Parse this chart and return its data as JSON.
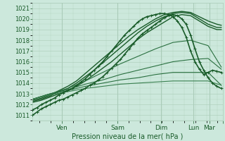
{
  "xlabel": "Pression niveau de la mer( hPa )",
  "ylim": [
    1010.5,
    1021.5
  ],
  "xlim": [
    0,
    130
  ],
  "yticks": [
    1011,
    1012,
    1013,
    1014,
    1015,
    1016,
    1017,
    1018,
    1019,
    1020,
    1021
  ],
  "xtick_positions": [
    20,
    58,
    88,
    110,
    121,
    130
  ],
  "xtick_labels": [
    "Ven",
    "Sam",
    "Dim",
    "Lun",
    "Mar",
    ""
  ],
  "bg_color": "#cce8dc",
  "grid_color": "#aaccb8",
  "series": [
    {
      "x": [
        0,
        3,
        6,
        9,
        12,
        15,
        18,
        21,
        24,
        27,
        30,
        33,
        36,
        39,
        42,
        45,
        48,
        51,
        54,
        57,
        60,
        63,
        66,
        69,
        72,
        75,
        78,
        81,
        84,
        87,
        90,
        93,
        96,
        99,
        102,
        105,
        108,
        111,
        114,
        117,
        120,
        123,
        126,
        129
      ],
      "y": [
        1011.0,
        1011.3,
        1011.6,
        1011.8,
        1012.0,
        1012.2,
        1012.4,
        1012.5,
        1012.7,
        1012.9,
        1013.1,
        1013.3,
        1013.5,
        1013.8,
        1014.0,
        1014.3,
        1014.6,
        1015.0,
        1015.4,
        1015.8,
        1016.2,
        1016.7,
        1017.2,
        1017.7,
        1018.2,
        1018.6,
        1018.9,
        1019.2,
        1019.5,
        1019.8,
        1020.1,
        1020.3,
        1020.4,
        1020.3,
        1020.0,
        1019.5,
        1018.5,
        1017.2,
        1016.0,
        1015.2,
        1014.5,
        1014.0,
        1013.7,
        1013.5
      ],
      "style": "marker",
      "linewidth": 1.2,
      "color": "#1a5c2a",
      "marker": "+"
    },
    {
      "x": [
        0,
        3,
        6,
        9,
        12,
        15,
        18,
        21,
        24,
        27,
        30,
        33,
        36,
        39,
        42,
        45,
        48,
        51,
        54,
        57,
        60,
        63,
        66,
        69,
        72,
        75,
        78,
        81,
        84,
        87,
        90,
        93,
        96,
        99,
        102,
        105,
        108,
        111,
        114,
        117,
        120,
        123,
        126,
        129
      ],
      "y": [
        1011.5,
        1011.7,
        1012.0,
        1012.2,
        1012.4,
        1012.6,
        1012.9,
        1013.1,
        1013.3,
        1013.5,
        1013.8,
        1014.1,
        1014.4,
        1014.8,
        1015.2,
        1015.6,
        1016.0,
        1016.5,
        1017.0,
        1017.5,
        1018.0,
        1018.5,
        1018.9,
        1019.3,
        1019.7,
        1020.0,
        1020.2,
        1020.3,
        1020.4,
        1020.5,
        1020.5,
        1020.4,
        1020.2,
        1019.8,
        1019.2,
        1018.3,
        1017.0,
        1016.0,
        1015.3,
        1014.8,
        1015.0,
        1015.2,
        1015.1,
        1015.0
      ],
      "style": "marker",
      "linewidth": 1.2,
      "color": "#1a5c2a",
      "marker": "+"
    },
    {
      "x": [
        0,
        6,
        12,
        18,
        24,
        30,
        36,
        42,
        48,
        54,
        60,
        66,
        72,
        78,
        84,
        90,
        96,
        102,
        108,
        114,
        120,
        126,
        129
      ],
      "y": [
        1012.2,
        1012.4,
        1012.7,
        1013.0,
        1013.3,
        1013.7,
        1014.2,
        1014.8,
        1015.4,
        1016.0,
        1016.7,
        1017.4,
        1018.1,
        1018.7,
        1019.2,
        1019.7,
        1020.2,
        1020.4,
        1020.3,
        1019.8,
        1019.3,
        1019.0,
        1019.0
      ],
      "style": "line",
      "linewidth": 1.0,
      "color": "#1a5c2a"
    },
    {
      "x": [
        0,
        6,
        12,
        18,
        24,
        30,
        36,
        42,
        48,
        54,
        60,
        66,
        72,
        78,
        84,
        90,
        96,
        102,
        108,
        114,
        120,
        126,
        129
      ],
      "y": [
        1012.3,
        1012.5,
        1012.8,
        1013.2,
        1013.5,
        1014.0,
        1014.6,
        1015.2,
        1015.9,
        1016.6,
        1017.3,
        1018.0,
        1018.7,
        1019.3,
        1019.8,
        1020.2,
        1020.5,
        1020.6,
        1020.5,
        1020.0,
        1019.5,
        1019.2,
        1019.2
      ],
      "style": "line",
      "linewidth": 1.0,
      "color": "#1a5c2a"
    },
    {
      "x": [
        0,
        6,
        12,
        18,
        24,
        30,
        36,
        42,
        48,
        54,
        60,
        66,
        72,
        78,
        84,
        90,
        96,
        102,
        108,
        114,
        120,
        126,
        129
      ],
      "y": [
        1012.4,
        1012.6,
        1012.9,
        1013.3,
        1013.7,
        1014.2,
        1014.9,
        1015.6,
        1016.3,
        1017.0,
        1017.7,
        1018.4,
        1019.0,
        1019.5,
        1020.0,
        1020.4,
        1020.6,
        1020.7,
        1020.6,
        1020.2,
        1019.8,
        1019.5,
        1019.4
      ],
      "style": "line",
      "linewidth": 1.0,
      "color": "#1a5c2a"
    },
    {
      "x": [
        0,
        12,
        24,
        36,
        48,
        60,
        72,
        84,
        96,
        108,
        120,
        129
      ],
      "y": [
        1012.5,
        1013.0,
        1013.5,
        1014.2,
        1015.0,
        1015.8,
        1016.5,
        1017.2,
        1017.8,
        1018.0,
        1017.5,
        1015.5
      ],
      "style": "line",
      "linewidth": 0.8,
      "color": "#2a7040"
    },
    {
      "x": [
        0,
        12,
        24,
        36,
        48,
        60,
        72,
        84,
        96,
        108,
        120,
        129
      ],
      "y": [
        1012.5,
        1013.0,
        1013.4,
        1013.9,
        1014.3,
        1014.8,
        1015.2,
        1015.6,
        1016.0,
        1016.2,
        1016.3,
        1015.3
      ],
      "style": "line",
      "linewidth": 0.8,
      "color": "#2a7040"
    },
    {
      "x": [
        0,
        12,
        24,
        36,
        48,
        60,
        72,
        84,
        96,
        108,
        120,
        129
      ],
      "y": [
        1012.5,
        1013.0,
        1013.3,
        1013.7,
        1014.0,
        1014.3,
        1014.5,
        1014.8,
        1015.0,
        1015.0,
        1015.0,
        1013.8
      ],
      "style": "line",
      "linewidth": 0.8,
      "color": "#2a7040"
    },
    {
      "x": [
        0,
        12,
        24,
        36,
        48,
        60,
        72,
        84,
        96,
        108,
        120,
        129
      ],
      "y": [
        1012.5,
        1012.9,
        1013.2,
        1013.5,
        1013.7,
        1013.9,
        1014.0,
        1014.1,
        1014.2,
        1014.2,
        1014.2,
        1013.8
      ],
      "style": "line",
      "linewidth": 0.8,
      "color": "#3a8050"
    }
  ],
  "vlines": [
    20,
    58,
    88,
    110,
    121
  ],
  "font_color": "#1a5c2a"
}
